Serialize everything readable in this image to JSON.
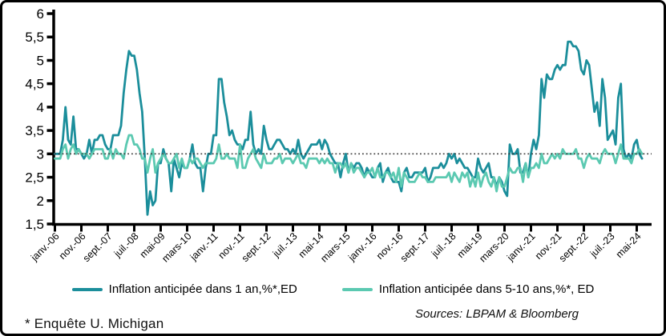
{
  "footnote": "*  Enquête U. Michigan",
  "sources": "Sources: LBPAM & Bloomberg",
  "chart_data": {
    "type": "line",
    "title": "",
    "xlabel": "",
    "ylabel": "",
    "ylim": [
      1.5,
      6
    ],
    "y_tick_step": 0.5,
    "y_tick_labels": [
      "6",
      "5,5",
      "5",
      "4,5",
      "4",
      "3,5",
      "3",
      "2,5",
      "2",
      "1,5"
    ],
    "x_start": "janv.-06",
    "x_end": "juil.-24",
    "x_tick_every_months": 10,
    "x_tick_labels": [
      "janv.-06",
      "nov.-06",
      "sept.-07",
      "juil.-08",
      "mai-09",
      "mars-10",
      "janv.-11",
      "nov.-11",
      "sept.-12",
      "juil.-13",
      "mai-14",
      "mars-15",
      "janv.-16",
      "nov.-16",
      "sept.-17",
      "juil.-18",
      "mai-19",
      "mars-20",
      "janv.-21",
      "nov.-21",
      "sept.-22",
      "juil.-23",
      "mai-24"
    ],
    "reference_line": {
      "value": 3,
      "style": "dotted",
      "color": "#3c3c3c"
    },
    "legend_position": "bottom",
    "grid": false,
    "series": [
      {
        "name": "Inflation anticipée dans 1 an,%*,ED",
        "color": "#1b8e9b",
        "values": [
          3.0,
          3.0,
          3.0,
          3.3,
          4.0,
          3.3,
          3.2,
          3.8,
          3.1,
          3.1,
          3.0,
          2.9,
          3.0,
          3.3,
          3.0,
          3.3,
          3.3,
          3.4,
          3.4,
          3.2,
          3.1,
          3.1,
          3.4,
          3.4,
          3.4,
          3.6,
          4.3,
          4.8,
          5.2,
          5.1,
          5.1,
          4.8,
          4.3,
          3.9,
          2.9,
          1.7,
          2.2,
          1.9,
          2.0,
          2.8,
          2.8,
          3.1,
          2.9,
          2.8,
          2.2,
          2.9,
          2.7,
          2.5,
          2.8,
          2.7,
          2.7,
          2.9,
          3.2,
          2.8,
          2.7,
          2.7,
          2.2,
          2.7,
          3.0,
          3.0,
          3.4,
          3.4,
          4.6,
          4.6,
          4.1,
          3.8,
          3.4,
          3.5,
          3.3,
          3.2,
          3.2,
          3.1,
          3.3,
          3.3,
          3.9,
          3.2,
          3.0,
          3.1,
          3.0,
          3.6,
          3.3,
          3.1,
          3.1,
          3.2,
          3.3,
          3.3,
          3.2,
          3.1,
          3.1,
          3.0,
          3.1,
          3.0,
          3.3,
          3.0,
          2.9,
          3.0,
          3.1,
          3.2,
          3.2,
          3.2,
          3.3,
          3.1,
          3.3,
          3.2,
          3.0,
          2.9,
          2.8,
          2.8,
          2.5,
          2.8,
          3.0,
          2.6,
          2.8,
          2.7,
          2.8,
          2.8,
          2.7,
          2.5,
          2.7,
          2.6,
          2.5,
          2.5,
          2.7,
          2.8,
          2.4,
          2.6,
          2.7,
          2.5,
          2.4,
          2.4,
          2.4,
          2.2,
          2.6,
          2.7,
          2.5,
          2.5,
          2.6,
          2.6,
          2.6,
          2.6,
          2.7,
          2.4,
          2.5,
          2.7,
          2.7,
          2.7,
          2.8,
          2.7,
          2.8,
          3.0,
          2.9,
          3.0,
          2.8,
          2.9,
          2.8,
          2.7,
          2.7,
          2.6,
          2.5,
          2.5,
          2.9,
          2.7,
          2.6,
          2.7,
          2.8,
          2.5,
          2.5,
          2.3,
          2.5,
          2.4,
          2.2,
          2.1,
          3.2,
          3.0,
          3.0,
          3.1,
          2.6,
          2.6,
          2.8,
          2.5,
          3.0,
          3.3,
          3.1,
          3.4,
          4.6,
          4.2,
          4.7,
          4.6,
          4.6,
          4.8,
          4.9,
          4.8,
          4.9,
          4.9,
          5.4,
          5.4,
          5.3,
          5.3,
          5.2,
          4.8,
          4.7,
          5.0,
          4.9,
          4.4,
          3.9,
          4.1,
          3.6,
          4.6,
          4.2,
          3.3,
          3.4,
          3.5,
          3.2,
          4.2,
          4.5,
          3.1,
          2.9,
          3.0,
          2.9,
          3.2,
          3.3,
          3.0,
          2.9
        ]
      },
      {
        "name": "Inflation anticipée dans 5-10 ans,%*, ED",
        "color": "#5bc9b1",
        "values": [
          2.9,
          2.9,
          2.9,
          3.1,
          3.2,
          2.9,
          3.1,
          3.2,
          3.0,
          3.1,
          3.0,
          3.0,
          3.0,
          2.9,
          3.0,
          3.1,
          3.1,
          3.1,
          3.1,
          2.9,
          2.9,
          3.1,
          2.9,
          3.1,
          3.0,
          3.0,
          2.9,
          3.2,
          3.4,
          3.4,
          3.2,
          3.2,
          3.1,
          2.9,
          2.9,
          2.6,
          2.9,
          3.1,
          2.6,
          2.8,
          2.9,
          3.0,
          2.9,
          2.8,
          2.8,
          2.9,
          3.0,
          2.7,
          2.9,
          2.7,
          2.7,
          2.9,
          2.8,
          2.9,
          2.9,
          2.8,
          2.7,
          2.8,
          2.8,
          2.8,
          2.8,
          2.9,
          3.2,
          2.9,
          2.9,
          3.0,
          2.9,
          2.9,
          2.9,
          2.7,
          3.2,
          2.7,
          2.7,
          2.9,
          3.0,
          3.1,
          2.9,
          2.8,
          2.7,
          3.0,
          2.8,
          2.8,
          2.8,
          2.9,
          2.9,
          3.0,
          2.8,
          2.9,
          2.9,
          2.9,
          2.8,
          2.9,
          3.0,
          2.8,
          2.8,
          2.7,
          2.9,
          2.9,
          2.9,
          2.9,
          2.8,
          2.9,
          2.8,
          2.9,
          2.8,
          2.8,
          2.6,
          2.8,
          2.8,
          2.7,
          2.8,
          2.6,
          2.8,
          2.6,
          2.7,
          2.7,
          2.6,
          2.5,
          2.6,
          2.6,
          2.7,
          2.5,
          2.7,
          2.5,
          2.5,
          2.6,
          2.6,
          2.5,
          2.6,
          2.4,
          2.7,
          2.3,
          2.6,
          2.5,
          2.4,
          2.4,
          2.4,
          2.5,
          2.6,
          2.5,
          2.5,
          2.4,
          2.4,
          2.4,
          2.5,
          2.5,
          2.5,
          2.5,
          2.5,
          2.6,
          2.4,
          2.6,
          2.5,
          2.4,
          2.6,
          2.5,
          2.6,
          2.3,
          2.5,
          2.3,
          2.6,
          2.3,
          2.5,
          2.6,
          2.4,
          2.3,
          2.5,
          2.2,
          2.5,
          2.3,
          2.3,
          2.5,
          2.7,
          2.6,
          2.6,
          2.7,
          2.7,
          2.4,
          2.8,
          2.5,
          2.7,
          2.7,
          2.8,
          2.7,
          3.0,
          2.8,
          2.8,
          2.9,
          3.0,
          2.9,
          3.0,
          2.9,
          3.1,
          3.0,
          3.0,
          3.0,
          3.0,
          3.1,
          2.9,
          2.9,
          2.7,
          2.9,
          3.0,
          2.9,
          2.9,
          2.9,
          2.8,
          3.0,
          3.1,
          3.0,
          3.0,
          3.0,
          2.8,
          3.0,
          3.2,
          2.9,
          2.9,
          2.9,
          2.8,
          3.0,
          3.0,
          3.1,
          3.0
        ]
      }
    ]
  }
}
